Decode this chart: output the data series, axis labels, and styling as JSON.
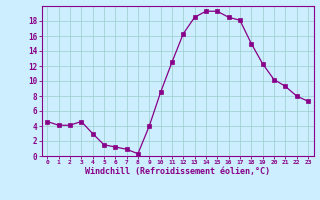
{
  "x": [
    0,
    1,
    2,
    3,
    4,
    5,
    6,
    7,
    8,
    9,
    10,
    11,
    12,
    13,
    14,
    15,
    16,
    17,
    18,
    19,
    20,
    21,
    22,
    23
  ],
  "y": [
    4.6,
    4.1,
    4.1,
    4.6,
    3.0,
    1.5,
    1.2,
    0.9,
    0.3,
    4.0,
    8.5,
    12.5,
    16.3,
    18.5,
    19.3,
    19.3,
    18.5,
    18.1,
    15.0,
    12.3,
    10.2,
    9.3,
    8.0,
    7.3
  ],
  "line_color": "#880088",
  "marker": "s",
  "marker_size": 2.2,
  "bg_color": "#cceeff",
  "grid_color": "#99cccc",
  "xlabel": "Windchill (Refroidissement éolien,°C)",
  "ylim": [
    0,
    20
  ],
  "xlim": [
    -0.5,
    23.5
  ],
  "yticks": [
    0,
    2,
    4,
    6,
    8,
    10,
    12,
    14,
    16,
    18
  ],
  "xticks": [
    0,
    1,
    2,
    3,
    4,
    5,
    6,
    7,
    8,
    9,
    10,
    11,
    12,
    13,
    14,
    15,
    16,
    17,
    18,
    19,
    20,
    21,
    22,
    23
  ],
  "tick_color": "#880088",
  "spine_color": "#880088",
  "xlabel_color": "#880088"
}
